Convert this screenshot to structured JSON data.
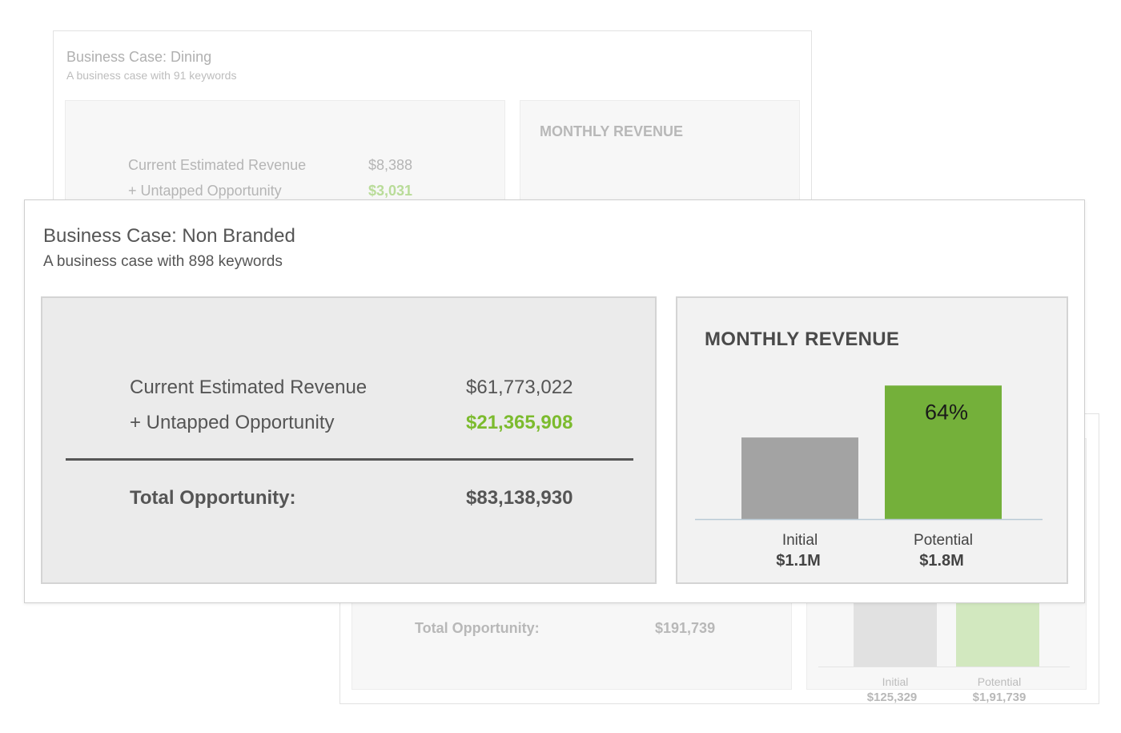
{
  "back_top_card": {
    "title": "Business Case: Dining",
    "subtitle": "A business case with 91 keywords",
    "current_label": "Current Estimated Revenue",
    "current_value": "$8,388",
    "untapped_label": "+ Untapped Opportunity",
    "untapped_value": "$3,031",
    "chart_title": "MONTHLY REVENUE"
  },
  "back_bottom_card": {
    "total_label": "Total Opportunity:",
    "total_value": "$191,739",
    "initial_label": "Initial",
    "initial_value": "$125,329",
    "potential_label": "Potential",
    "potential_value": "$1,91,739"
  },
  "main_card": {
    "title": "Business Case: Non Branded",
    "subtitle": "A business case with 898 keywords",
    "current_label": "Current Estimated Revenue",
    "current_value": "$61,773,022",
    "untapped_label": "+ Untapped Opportunity",
    "untapped_value": "$21,365,908",
    "total_label": "Total Opportunity:",
    "total_value": "$83,138,930",
    "chart_title": "MONTHLY REVENUE"
  },
  "colors": {
    "accent_green": "#7cbb2e",
    "bar_initial": "#a3a3a3",
    "bar_potential": "#74b03a"
  },
  "chart_data": {
    "type": "bar",
    "title": "MONTHLY REVENUE",
    "categories": [
      "Initial",
      "Potential"
    ],
    "values": [
      1.1,
      1.8
    ],
    "value_labels": [
      "$1.1M",
      "$1.8M"
    ],
    "annotation": "64%",
    "ylim": [
      0,
      1.9
    ]
  }
}
